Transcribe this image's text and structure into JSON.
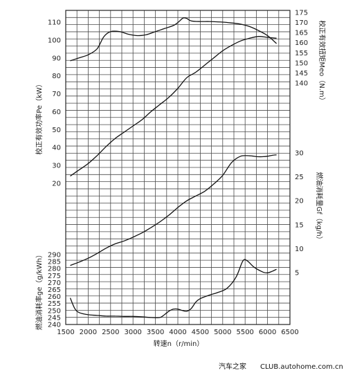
{
  "chart_data": {
    "type": "line",
    "x_axis": {
      "label": "转速n（r/min）",
      "range": [
        1500,
        6500
      ],
      "ticks": [
        "1500",
        "2000",
        "2500",
        "3000",
        "3500",
        "4000",
        "4500",
        "5000",
        "5500",
        "6000",
        "6500"
      ]
    },
    "axes": {
      "power": {
        "label": "校正有效功率Pe（kW）",
        "side": "left",
        "ticks": [
          "20",
          "30",
          "40",
          "50",
          "60",
          "70",
          "80",
          "90",
          "100",
          "110"
        ]
      },
      "torque": {
        "label": "校正有效扭矩Meo（N.m）",
        "side": "right",
        "ticks": [
          "140",
          "145",
          "150",
          "155",
          "160",
          "165",
          "170",
          "175"
        ]
      },
      "fuel_consumption": {
        "label": "燃油消耗量Gf（kg/h）",
        "side": "right",
        "ticks": [
          "5",
          "10",
          "15",
          "20",
          "25",
          "30"
        ]
      },
      "specific_fuel_consumption": {
        "label": "燃油消耗率ge（g/kWh）",
        "side": "left",
        "ticks": [
          "240",
          "245",
          "250",
          "255",
          "260",
          "265",
          "270",
          "275",
          "280",
          "285",
          "290"
        ]
      }
    },
    "series": [
      {
        "axis": "torque",
        "x": [
          1600,
          1800,
          2000,
          2200,
          2350,
          2500,
          2700,
          2900,
          3100,
          3300,
          3500,
          3700,
          3900,
          4000,
          4100,
          4150,
          4200,
          4300,
          4500,
          4700,
          5000,
          5200,
          5400,
          5600,
          5800,
          6000,
          6200
        ],
        "y": [
          151,
          152.5,
          154,
          157,
          163,
          165.5,
          165.5,
          164.2,
          163.5,
          164,
          165.5,
          167,
          168.5,
          170,
          172,
          172.3,
          172,
          170.8,
          170.5,
          170.5,
          170.2,
          169.8,
          169.2,
          168,
          166,
          163.5,
          159.6
        ]
      },
      {
        "axis": "power",
        "x": [
          1600,
          1800,
          2000,
          2200,
          2400,
          2600,
          2800,
          3000,
          3200,
          3400,
          3600,
          3800,
          4000,
          4200,
          4400,
          4600,
          4800,
          5000,
          5200,
          5400,
          5600,
          5800,
          6000,
          6200
        ],
        "y": [
          24,
          27.5,
          31,
          35.5,
          40.5,
          45,
          48.5,
          52,
          55.5,
          60,
          64,
          68,
          73,
          79,
          82,
          86,
          90,
          94,
          97,
          99.5,
          101,
          102,
          101.5,
          101
        ]
      },
      {
        "axis": "fuel_consumption",
        "x": [
          1600,
          1800,
          2000,
          2200,
          2400,
          2600,
          2800,
          3000,
          3200,
          3400,
          3600,
          3800,
          4000,
          4200,
          4400,
          4600,
          4800,
          5000,
          5200,
          5400,
          5600,
          5800,
          6000,
          6100,
          6200
        ],
        "y": [
          6.5,
          7.2,
          8,
          9,
          10.1,
          11,
          11.6,
          12.4,
          13.3,
          14.4,
          15.6,
          17,
          18.6,
          20,
          21,
          22,
          23.5,
          25.3,
          28,
          29.3,
          29.4,
          29.2,
          29.3,
          29.5,
          29.6
        ]
      },
      {
        "axis": "specific_fuel_consumption",
        "x": [
          1600,
          1700,
          1800,
          2000,
          2200,
          2400,
          2600,
          2800,
          3000,
          3200,
          3400,
          3600,
          3700,
          3800,
          3900,
          4000,
          4100,
          4200,
          4300,
          4400,
          4500,
          4700,
          4900,
          5100,
          5300,
          5450,
          5550,
          5700,
          5900,
          6000,
          6100,
          6200
        ],
        "y": [
          259,
          251.5,
          248.5,
          247,
          246.5,
          246,
          246,
          245.8,
          245.8,
          245.5,
          245,
          245,
          247,
          249.5,
          251,
          251,
          250,
          249.5,
          251.5,
          256,
          258.5,
          261,
          263,
          266,
          274,
          285.5,
          285.5,
          281,
          277.5,
          277,
          278,
          279.5
        ]
      }
    ],
    "grid": true
  },
  "watermark": {
    "brand": "汽车之家",
    "site": "CLUB.autohome.com.cn"
  }
}
